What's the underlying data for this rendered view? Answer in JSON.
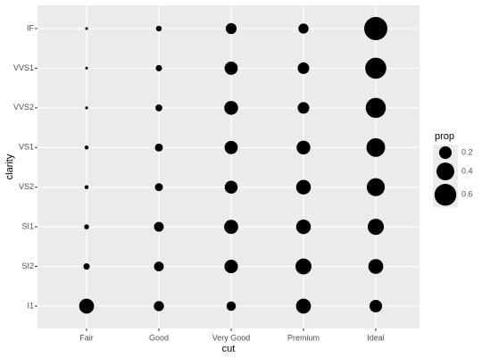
{
  "chart_data": {
    "type": "count",
    "x_label": "cut",
    "y_label": "clarity",
    "x_categories": [
      "Fair",
      "Good",
      "Very Good",
      "Premium",
      "Ideal"
    ],
    "y_categories": [
      "I1",
      "SI2",
      "SI1",
      "VS2",
      "VS1",
      "VVS2",
      "VVS1",
      "IF"
    ],
    "values": [
      [
        0.28,
        0.13,
        0.11,
        0.28,
        0.2
      ],
      [
        0.05,
        0.12,
        0.23,
        0.32,
        0.28
      ],
      [
        0.03,
        0.12,
        0.25,
        0.27,
        0.33
      ],
      [
        0.02,
        0.08,
        0.21,
        0.27,
        0.41
      ],
      [
        0.02,
        0.08,
        0.22,
        0.24,
        0.44
      ],
      [
        0.01,
        0.06,
        0.24,
        0.17,
        0.51
      ],
      [
        0.005,
        0.05,
        0.22,
        0.17,
        0.56
      ],
      [
        0.005,
        0.04,
        0.15,
        0.13,
        0.68
      ]
    ],
    "color": "#000000",
    "grid": true,
    "legend": {
      "title": "prop",
      "position": "right",
      "sizes": [
        0.2,
        0.4,
        0.6
      ]
    }
  }
}
